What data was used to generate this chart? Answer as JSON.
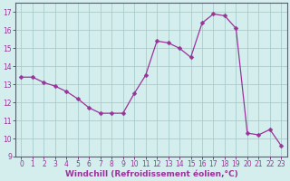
{
  "x": [
    0,
    1,
    2,
    3,
    4,
    5,
    6,
    7,
    8,
    9,
    10,
    11,
    12,
    13,
    14,
    15,
    16,
    17,
    18,
    19,
    20,
    21,
    22,
    23
  ],
  "y": [
    13.4,
    13.4,
    13.1,
    12.9,
    12.6,
    12.2,
    11.7,
    11.4,
    11.4,
    11.4,
    12.5,
    13.5,
    15.4,
    15.3,
    15.0,
    14.5,
    16.4,
    16.9,
    16.8,
    16.1,
    10.3,
    10.2,
    10.5,
    9.6
  ],
  "line_color": "#993399",
  "marker": "D",
  "marker_size": 2.5,
  "background_color": "#d4eeee",
  "grid_color": "#aacccc",
  "xlabel": "Windchill (Refroidissement éolien,°C)",
  "xlim": [
    -0.5,
    23.5
  ],
  "ylim": [
    9,
    17.5
  ],
  "yticks": [
    9,
    10,
    11,
    12,
    13,
    14,
    15,
    16,
    17
  ],
  "xticks": [
    0,
    1,
    2,
    3,
    4,
    5,
    6,
    7,
    8,
    9,
    10,
    11,
    12,
    13,
    14,
    15,
    16,
    17,
    18,
    19,
    20,
    21,
    22,
    23
  ],
  "tick_fontsize": 5.5,
  "label_fontsize": 6.5,
  "axis_color": "#993399",
  "spine_color": "#993399"
}
